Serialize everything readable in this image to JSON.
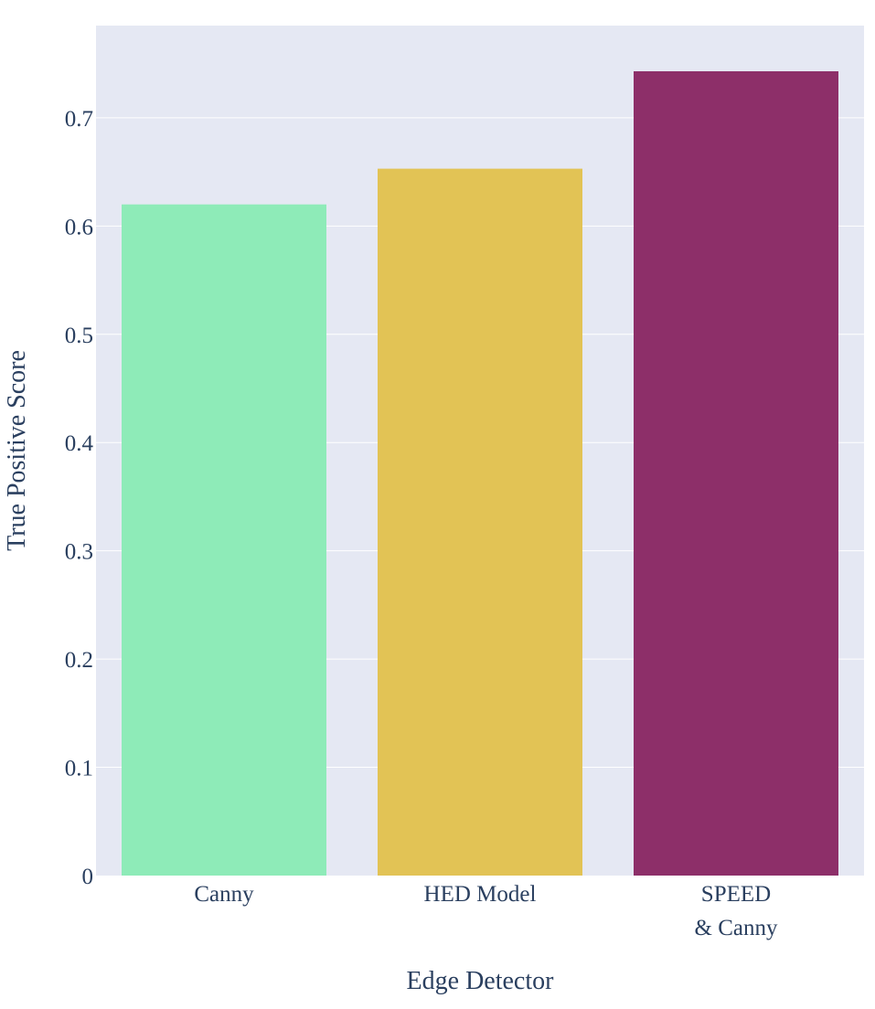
{
  "chart_data": {
    "type": "bar",
    "categories": [
      [
        "Canny"
      ],
      [
        "HED Model"
      ],
      [
        "SPEED",
        "& Canny"
      ]
    ],
    "values": [
      0.62,
      0.653,
      0.743
    ],
    "colors": [
      "#8eebb8",
      "#e2c355",
      "#8d2f69"
    ],
    "xlabel": "Edge Detector",
    "ylabel": "True Positive Score",
    "ylim": [
      0,
      0.7852
    ],
    "yticks": [
      0,
      0.1,
      0.2,
      0.3,
      0.4,
      0.5,
      0.6,
      0.7
    ],
    "ytick_labels": [
      "0",
      "0.1",
      "0.2",
      "0.3",
      "0.4",
      "0.5",
      "0.6",
      "0.7"
    ],
    "plot_background": "#e5e8f3",
    "grid": true,
    "grid_color": "#ffffff",
    "legend": false
  }
}
